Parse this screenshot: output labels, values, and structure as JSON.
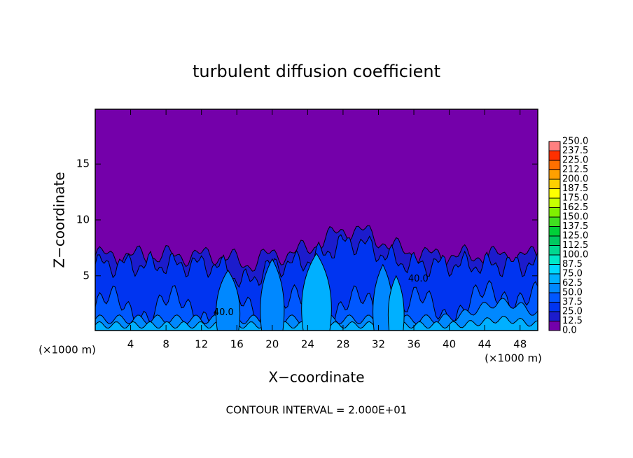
{
  "chart_data": {
    "type": "contour",
    "title": "turbulent diffusion coefficient",
    "x_label": "X−coordinate",
    "y_label": "Z−coordinate",
    "x_unit_left": "(×1000 m)",
    "x_unit_right": "(×1000 m)",
    "footnote": "CONTOUR INTERVAL = 2.000E+01",
    "xlim": [
      0,
      50
    ],
    "xticks": [
      4,
      8,
      12,
      16,
      20,
      24,
      28,
      32,
      36,
      40,
      44,
      48
    ],
    "ylim": [
      0.1,
      19.9
    ],
    "yticks": [
      5,
      10,
      15
    ],
    "contour_labels": [
      {
        "value": 40,
        "label": "40.0"
      },
      {
        "value": 40,
        "label": "40.0"
      }
    ],
    "colorbar": {
      "levels": [
        {
          "value": 0,
          "label": "0.0"
        },
        12.5,
        {
          "value": 25,
          "label": "25.0"
        },
        37.5,
        {
          "value": 50,
          "label": "50.0"
        },
        62.5,
        {
          "value": 75,
          "label": "75.0"
        },
        87.5,
        {
          "value": 100,
          "label": "100.0"
        },
        112.5,
        {
          "value": 125,
          "label": "125.0"
        },
        137.5,
        {
          "value": 150,
          "label": "150.0"
        },
        162.5,
        {
          "value": 175,
          "label": "175.0"
        },
        187.5,
        {
          "value": 200,
          "label": "200.0"
        },
        212.5,
        {
          "value": 225,
          "label": "225.0"
        },
        237.5,
        {
          "value": 250,
          "label": "250.0"
        }
      ],
      "colors": [
        "#7400aa",
        "#1c1ccc",
        "#0034f0",
        "#0058ff",
        "#0088ff",
        "#00b0ff",
        "#00d8ff",
        "#00e8c8",
        "#00d890",
        "#00c860",
        "#00d038",
        "#40e020",
        "#80f000",
        "#c8ff00",
        "#ffff00",
        "#ffd000",
        "#ffa000",
        "#ff7000",
        "#ff3000",
        "#ff8080"
      ]
    }
  }
}
